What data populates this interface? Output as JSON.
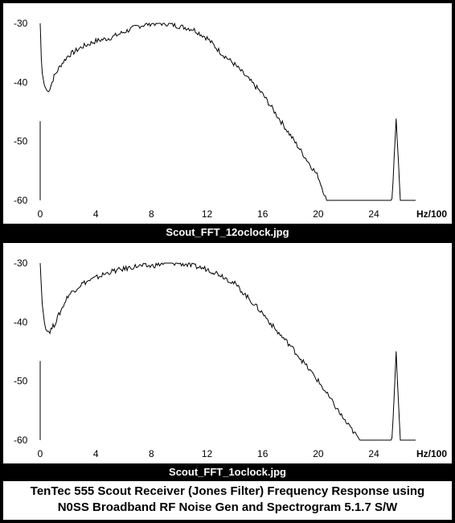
{
  "chart_data": [
    {
      "type": "line",
      "title": "Scout_FFT_12oclock.jpg",
      "xlabel": "Hz/100",
      "ylabel": "",
      "xlim": [
        0,
        27
      ],
      "ylim": [
        -60,
        -30
      ],
      "x_ticks": [
        "0",
        "4",
        "8",
        "12",
        "16",
        "20",
        "24"
      ],
      "y_ticks": [
        "-30",
        "-40",
        "-50",
        "-60"
      ],
      "series": [
        {
          "x": [
            0.0,
            0.08,
            0.15,
            0.3,
            0.5,
            0.7,
            1.0,
            1.5,
            2.0,
            3.0,
            4.0,
            5.0,
            6.0,
            7.0,
            8.0,
            9.0,
            10.0,
            11.0,
            12.0,
            13.0,
            14.0,
            15.0,
            16.0,
            17.0,
            18.0,
            19.0,
            20.0,
            20.6,
            21.0,
            22.0,
            23.0,
            24.0,
            25.0,
            25.3,
            25.6,
            25.9,
            26.2,
            27.0
          ],
          "y": [
            -30,
            -36,
            -38.5,
            -40.5,
            -41.5,
            -41,
            -39,
            -37,
            -35.5,
            -34,
            -33,
            -32.5,
            -31.5,
            -30.5,
            -30,
            -30,
            -30.5,
            -31,
            -32.5,
            -35,
            -37,
            -39.5,
            -42,
            -45.5,
            -49,
            -52.5,
            -56,
            -60,
            -60,
            -60,
            -60,
            -60,
            -60,
            -60,
            -46,
            -60,
            -60,
            -60
          ]
        }
      ]
    },
    {
      "type": "line",
      "title": "Scout_FFT_1oclock.jpg",
      "xlabel": "Hz/100",
      "ylabel": "",
      "xlim": [
        0,
        27
      ],
      "ylim": [
        -60,
        -30
      ],
      "x_ticks": [
        "0",
        "4",
        "8",
        "12",
        "16",
        "20",
        "24"
      ],
      "y_ticks": [
        "-30",
        "-40",
        "-50",
        "-60"
      ],
      "series": [
        {
          "x": [
            0.0,
            0.08,
            0.15,
            0.3,
            0.5,
            0.7,
            1.0,
            1.5,
            2.0,
            3.0,
            4.0,
            5.0,
            6.0,
            7.0,
            8.0,
            9.0,
            10.0,
            11.0,
            12.0,
            13.0,
            14.0,
            15.0,
            16.0,
            17.0,
            18.0,
            19.0,
            20.0,
            21.0,
            22.0,
            23.0,
            24.0,
            25.0,
            25.3,
            25.6,
            25.9,
            26.2,
            27.0
          ],
          "y": [
            -30,
            -34,
            -37,
            -40,
            -41.5,
            -41.5,
            -40.5,
            -38,
            -35.5,
            -33.5,
            -32.5,
            -31.5,
            -31,
            -30.5,
            -30.5,
            -30,
            -30,
            -30.5,
            -31,
            -32,
            -33.5,
            -36,
            -38.5,
            -41.5,
            -44,
            -47,
            -50,
            -53.5,
            -57,
            -60,
            -60,
            -60,
            -60,
            -45,
            -60,
            -60,
            -60
          ]
        }
      ]
    }
  ],
  "captions": [
    "Scout_FFT_12oclock.jpg",
    "Scout_FFT_1oclock.jpg"
  ],
  "footer": {
    "line1": "TenTec 555 Scout Receiver (Jones Filter) Frequency Response using",
    "line2": "N0SS Broadband RF Noise Gen and Spectrogram 5.1.7 S/W"
  }
}
